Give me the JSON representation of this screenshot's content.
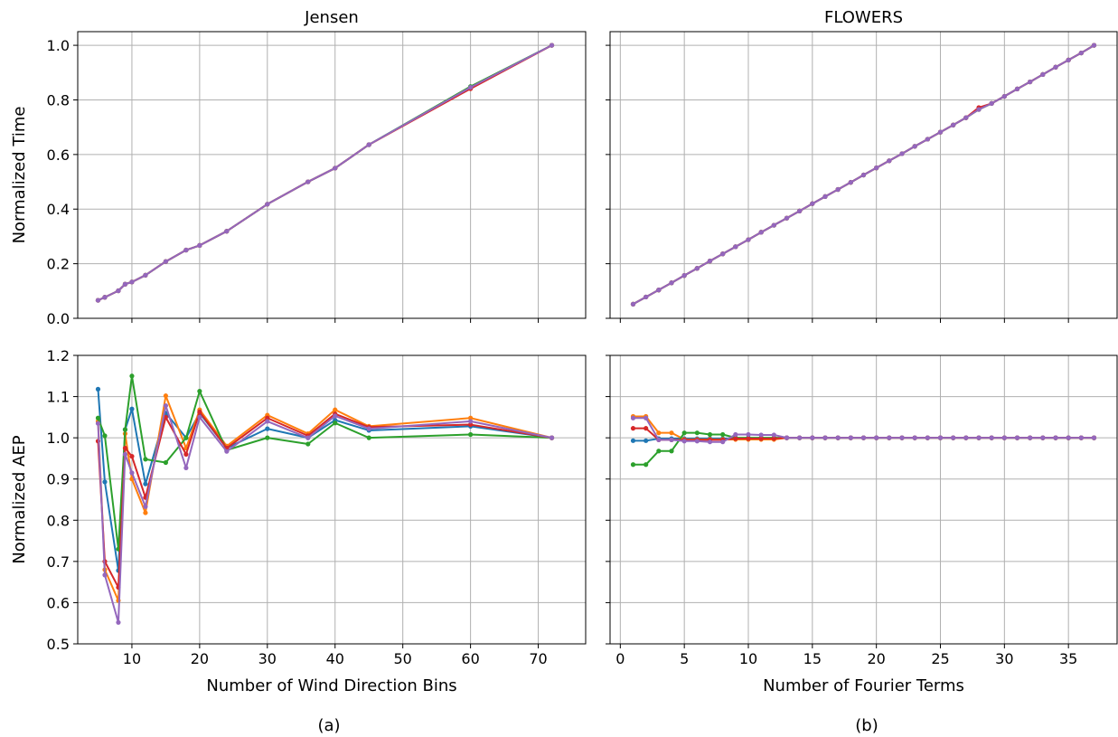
{
  "figure": {
    "caption_left": "(a)",
    "caption_right": "(b)"
  },
  "colors": {
    "series": [
      "#1f77b4",
      "#ff7f0e",
      "#2ca02c",
      "#d62728",
      "#9467bd"
    ],
    "grid": "#b0b0b0",
    "axis": "#000000"
  },
  "chart_data": [
    {
      "id": "jensen_time",
      "type": "line",
      "title": "Jensen",
      "xlabel": "",
      "ylabel": "Normalized Time",
      "xlim": [
        2,
        77
      ],
      "ylim": [
        0.0,
        1.05
      ],
      "xticks": [
        10,
        20,
        30,
        40,
        50,
        60,
        70
      ],
      "xtick_labels": [],
      "yticks": [
        0.0,
        0.2,
        0.4,
        0.6,
        0.8,
        1.0
      ],
      "ytick_labels": [
        "0.0",
        "0.2",
        "0.4",
        "0.6",
        "0.8",
        "1.0"
      ],
      "grid": true,
      "x": [
        5,
        6,
        8,
        9,
        10,
        12,
        15,
        18,
        20,
        24,
        30,
        36,
        40,
        45,
        60,
        72
      ],
      "series": [
        {
          "values": [
            0.066,
            0.077,
            0.101,
            0.125,
            0.133,
            0.158,
            0.208,
            0.25,
            0.267,
            0.319,
            0.418,
            0.5,
            0.55,
            0.636,
            0.848,
            1.0
          ]
        },
        {
          "values": [
            0.066,
            0.077,
            0.101,
            0.125,
            0.133,
            0.158,
            0.208,
            0.25,
            0.267,
            0.319,
            0.418,
            0.5,
            0.55,
            0.636,
            0.842,
            1.0
          ]
        },
        {
          "values": [
            0.066,
            0.077,
            0.101,
            0.125,
            0.133,
            0.158,
            0.208,
            0.25,
            0.267,
            0.319,
            0.418,
            0.5,
            0.55,
            0.636,
            0.849,
            1.0
          ]
        },
        {
          "values": [
            0.066,
            0.077,
            0.101,
            0.125,
            0.133,
            0.158,
            0.208,
            0.25,
            0.267,
            0.319,
            0.418,
            0.5,
            0.55,
            0.636,
            0.841,
            1.0
          ]
        },
        {
          "values": [
            0.066,
            0.077,
            0.101,
            0.125,
            0.133,
            0.158,
            0.208,
            0.25,
            0.267,
            0.319,
            0.418,
            0.5,
            0.55,
            0.636,
            0.846,
            1.0
          ]
        }
      ]
    },
    {
      "id": "flowers_time",
      "type": "line",
      "title": "FLOWERS",
      "xlabel": "",
      "ylabel": "",
      "xlim": [
        -0.8,
        38.8
      ],
      "ylim": [
        0.0,
        1.05
      ],
      "xticks": [
        0,
        5,
        10,
        15,
        20,
        25,
        30,
        35
      ],
      "xtick_labels": [],
      "yticks": [
        0.0,
        0.2,
        0.4,
        0.6,
        0.8,
        1.0
      ],
      "ytick_labels": [],
      "grid": true,
      "x": [
        1,
        2,
        3,
        4,
        5,
        6,
        7,
        8,
        9,
        10,
        11,
        12,
        13,
        14,
        15,
        16,
        17,
        18,
        19,
        20,
        21,
        22,
        23,
        24,
        25,
        26,
        27,
        28,
        29,
        30,
        31,
        32,
        33,
        34,
        35,
        36,
        37
      ],
      "series": [
        {
          "values": [
            0.052,
            0.078,
            0.104,
            0.13,
            0.157,
            0.183,
            0.21,
            0.236,
            0.262,
            0.288,
            0.315,
            0.341,
            0.367,
            0.393,
            0.42,
            0.446,
            0.472,
            0.498,
            0.525,
            0.551,
            0.577,
            0.603,
            0.63,
            0.656,
            0.682,
            0.708,
            0.735,
            0.765,
            0.787,
            0.813,
            0.84,
            0.866,
            0.893,
            0.92,
            0.946,
            0.972,
            1.0
          ]
        },
        {
          "values": [
            0.052,
            0.078,
            0.104,
            0.13,
            0.157,
            0.183,
            0.21,
            0.236,
            0.262,
            0.288,
            0.315,
            0.341,
            0.367,
            0.393,
            0.42,
            0.446,
            0.472,
            0.498,
            0.525,
            0.551,
            0.577,
            0.603,
            0.63,
            0.656,
            0.682,
            0.708,
            0.735,
            0.765,
            0.787,
            0.813,
            0.84,
            0.866,
            0.893,
            0.92,
            0.946,
            0.972,
            1.0
          ]
        },
        {
          "values": [
            0.052,
            0.078,
            0.104,
            0.13,
            0.157,
            0.183,
            0.21,
            0.236,
            0.262,
            0.288,
            0.315,
            0.341,
            0.367,
            0.393,
            0.42,
            0.446,
            0.472,
            0.498,
            0.525,
            0.551,
            0.577,
            0.603,
            0.63,
            0.656,
            0.682,
            0.708,
            0.735,
            0.765,
            0.787,
            0.813,
            0.84,
            0.866,
            0.893,
            0.92,
            0.946,
            0.972,
            1.0
          ]
        },
        {
          "values": [
            0.052,
            0.078,
            0.104,
            0.13,
            0.157,
            0.183,
            0.21,
            0.236,
            0.262,
            0.288,
            0.315,
            0.341,
            0.367,
            0.393,
            0.42,
            0.446,
            0.472,
            0.498,
            0.525,
            0.551,
            0.577,
            0.603,
            0.63,
            0.656,
            0.682,
            0.708,
            0.735,
            0.772,
            0.787,
            0.813,
            0.84,
            0.866,
            0.893,
            0.92,
            0.946,
            0.972,
            1.0
          ]
        },
        {
          "values": [
            0.052,
            0.078,
            0.104,
            0.13,
            0.157,
            0.183,
            0.21,
            0.236,
            0.262,
            0.288,
            0.315,
            0.341,
            0.367,
            0.393,
            0.42,
            0.446,
            0.472,
            0.498,
            0.525,
            0.551,
            0.577,
            0.603,
            0.63,
            0.656,
            0.682,
            0.708,
            0.735,
            0.765,
            0.787,
            0.813,
            0.84,
            0.866,
            0.893,
            0.92,
            0.946,
            0.972,
            1.0
          ]
        }
      ]
    },
    {
      "id": "jensen_aep",
      "type": "line",
      "title": "",
      "xlabel": "Number of Wind Direction Bins",
      "ylabel": "Normalized AEP",
      "xlim": [
        2,
        77
      ],
      "ylim": [
        0.5,
        1.2
      ],
      "xticks": [
        10,
        20,
        30,
        40,
        50,
        60,
        70
      ],
      "xtick_labels": [
        "10",
        "20",
        "30",
        "40",
        "50",
        "60",
        "70"
      ],
      "yticks": [
        0.5,
        0.6,
        0.7,
        0.8,
        0.9,
        1.0,
        1.1,
        1.2
      ],
      "ytick_labels": [
        "0.5",
        "0.6",
        "0.7",
        "0.8",
        "0.9",
        "1.0",
        "1.1",
        "1.2"
      ],
      "grid": true,
      "x": [
        5,
        6,
        8,
        9,
        10,
        12,
        15,
        18,
        20,
        24,
        30,
        36,
        40,
        45,
        60,
        72
      ],
      "series": [
        {
          "values": [
            1.118,
            0.893,
            0.678,
            1.02,
            1.07,
            0.888,
            1.06,
            1.0,
            1.06,
            0.975,
            1.022,
            1.0,
            1.043,
            1.018,
            1.028,
            1.0
          ]
        },
        {
          "values": [
            1.04,
            0.68,
            0.605,
            1.01,
            0.9,
            0.818,
            1.102,
            0.975,
            1.068,
            0.98,
            1.055,
            1.01,
            1.068,
            1.028,
            1.048,
            1.0
          ]
        },
        {
          "values": [
            1.048,
            1.005,
            0.73,
            1.02,
            1.15,
            0.948,
            0.94,
            1.0,
            1.113,
            0.97,
            1.0,
            0.985,
            1.036,
            1.0,
            1.008,
            1.0
          ]
        },
        {
          "values": [
            0.992,
            0.7,
            0.637,
            0.975,
            0.955,
            0.855,
            1.05,
            0.96,
            1.063,
            0.975,
            1.048,
            1.005,
            1.058,
            1.026,
            1.032,
            1.0
          ]
        },
        {
          "values": [
            1.035,
            0.667,
            0.552,
            0.96,
            0.915,
            0.833,
            1.078,
            0.927,
            1.05,
            0.967,
            1.04,
            1.0,
            1.053,
            1.022,
            1.04,
            1.0
          ]
        }
      ]
    },
    {
      "id": "flowers_aep",
      "type": "line",
      "title": "",
      "xlabel": "Number of Fourier Terms",
      "ylabel": "",
      "xlim": [
        -0.8,
        38.8
      ],
      "ylim": [
        0.5,
        1.2
      ],
      "xticks": [
        0,
        5,
        10,
        15,
        20,
        25,
        30,
        35
      ],
      "xtick_labels": [
        "0",
        "5",
        "10",
        "15",
        "20",
        "25",
        "30",
        "35"
      ],
      "yticks": [
        0.5,
        0.6,
        0.7,
        0.8,
        0.9,
        1.0,
        1.1,
        1.2
      ],
      "ytick_labels": [],
      "grid": true,
      "x": [
        1,
        2,
        3,
        4,
        5,
        6,
        7,
        8,
        9,
        10,
        11,
        12,
        13,
        14,
        15,
        16,
        17,
        18,
        19,
        20,
        21,
        22,
        23,
        24,
        25,
        26,
        27,
        28,
        29,
        30,
        31,
        32,
        33,
        34,
        35,
        36,
        37
      ],
      "series": [
        {
          "values": [
            0.993,
            0.993,
            0.998,
            0.998,
            0.998,
            0.998,
            0.998,
            0.998,
            0.998,
            0.998,
            0.998,
            0.998,
            1.0,
            1.0,
            1.0,
            1.0,
            1.0,
            1.0,
            1.0,
            1.0,
            1.0,
            1.0,
            1.0,
            1.0,
            1.0,
            1.0,
            1.0,
            1.0,
            1.0,
            1.0,
            1.0,
            1.0,
            1.0,
            1.0,
            1.0,
            1.0,
            1.0
          ]
        },
        {
          "values": [
            1.052,
            1.052,
            1.012,
            1.012,
            0.996,
            0.996,
            0.996,
            0.996,
            0.996,
            0.996,
            0.996,
            0.996,
            1.0,
            1.0,
            1.0,
            1.0,
            1.0,
            1.0,
            1.0,
            1.0,
            1.0,
            1.0,
            1.0,
            1.0,
            1.0,
            1.0,
            1.0,
            1.0,
            1.0,
            1.0,
            1.0,
            1.0,
            1.0,
            1.0,
            1.0,
            1.0,
            1.0
          ]
        },
        {
          "values": [
            0.935,
            0.935,
            0.968,
            0.968,
            1.012,
            1.012,
            1.008,
            1.008,
            1.0,
            1.0,
            1.0,
            1.0,
            1.0,
            1.0,
            1.0,
            1.0,
            1.0,
            1.0,
            1.0,
            1.0,
            1.0,
            1.0,
            1.0,
            1.0,
            1.0,
            1.0,
            1.0,
            1.0,
            1.0,
            1.0,
            1.0,
            1.0,
            1.0,
            1.0,
            1.0,
            1.0,
            1.0
          ]
        },
        {
          "values": [
            1.023,
            1.023,
            0.995,
            0.995,
            0.995,
            0.995,
            0.995,
            0.995,
            0.998,
            0.998,
            0.998,
            0.998,
            1.0,
            1.0,
            1.0,
            1.0,
            1.0,
            1.0,
            1.0,
            1.0,
            1.0,
            1.0,
            1.0,
            1.0,
            1.0,
            1.0,
            1.0,
            1.0,
            1.0,
            1.0,
            1.0,
            1.0,
            1.0,
            1.0,
            1.0,
            1.0,
            1.0
          ]
        },
        {
          "values": [
            1.048,
            1.048,
            0.995,
            0.995,
            0.992,
            0.992,
            0.99,
            0.99,
            1.008,
            1.008,
            1.007,
            1.007,
            1.0,
            1.0,
            1.0,
            1.0,
            1.0,
            1.0,
            1.0,
            1.0,
            1.0,
            1.0,
            1.0,
            1.0,
            1.0,
            1.0,
            1.0,
            1.0,
            1.0,
            1.0,
            1.0,
            1.0,
            1.0,
            1.0,
            1.0,
            1.0,
            1.0
          ]
        }
      ]
    }
  ]
}
